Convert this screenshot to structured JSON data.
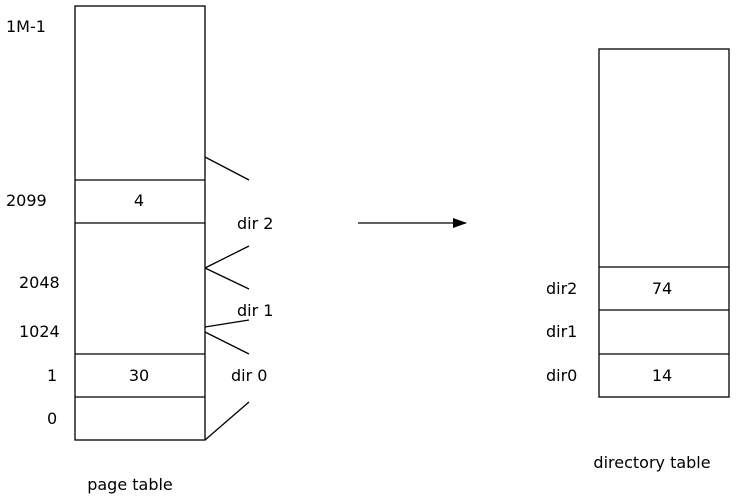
{
  "page_table": {
    "caption": "page table",
    "index_labels": {
      "top": "1M-1",
      "i2099": "2099",
      "i2048": "2048",
      "i1024": "1024",
      "i1": "1",
      "i0": "0"
    },
    "cells": {
      "row_2099": "4",
      "row_1": "30"
    },
    "dir_labels": {
      "dir2": "dir 2",
      "dir1": "dir 1",
      "dir0": "dir 0"
    }
  },
  "directory_table": {
    "caption": "directory table",
    "row_labels": {
      "dir2": "dir2",
      "dir1": "dir1",
      "dir0": "dir0"
    },
    "cells": {
      "dir2": "74",
      "dir1": "",
      "dir0": "14"
    }
  }
}
